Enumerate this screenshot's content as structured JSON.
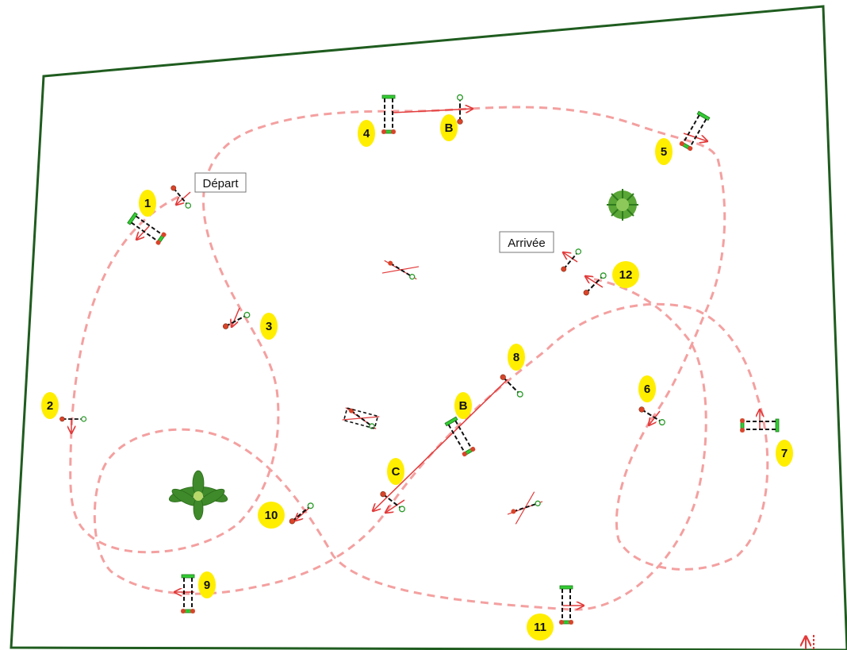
{
  "labels": {
    "start": "Départ",
    "finish": "Arrivée"
  },
  "markers": [
    {
      "id": "m1",
      "text": "1"
    },
    {
      "id": "m2",
      "text": "2"
    },
    {
      "id": "m3",
      "text": "3"
    },
    {
      "id": "m4",
      "text": "4"
    },
    {
      "id": "m5",
      "text": "5"
    },
    {
      "id": "m6",
      "text": "6"
    },
    {
      "id": "m7",
      "text": "7"
    },
    {
      "id": "m8",
      "text": "8"
    },
    {
      "id": "m9",
      "text": "9"
    },
    {
      "id": "m10",
      "text": "10"
    },
    {
      "id": "m11",
      "text": "11"
    },
    {
      "id": "m12",
      "text": "12"
    },
    {
      "id": "mB1",
      "text": "B"
    },
    {
      "id": "mB2",
      "text": "B"
    },
    {
      "id": "mC",
      "text": "C"
    }
  ],
  "colors": {
    "border": "#1f5c1f",
    "course": "#f4a0a0",
    "arrow": "#e23b3b",
    "marker": "#ffee00",
    "pole_green": "#33cc33",
    "pole_red": "#d9442a",
    "tree": "#3f8a2a"
  },
  "icons": [
    "palm-tree-icon",
    "bush-icon",
    "obstacle-icon",
    "crossed-obstacle-icon"
  ]
}
